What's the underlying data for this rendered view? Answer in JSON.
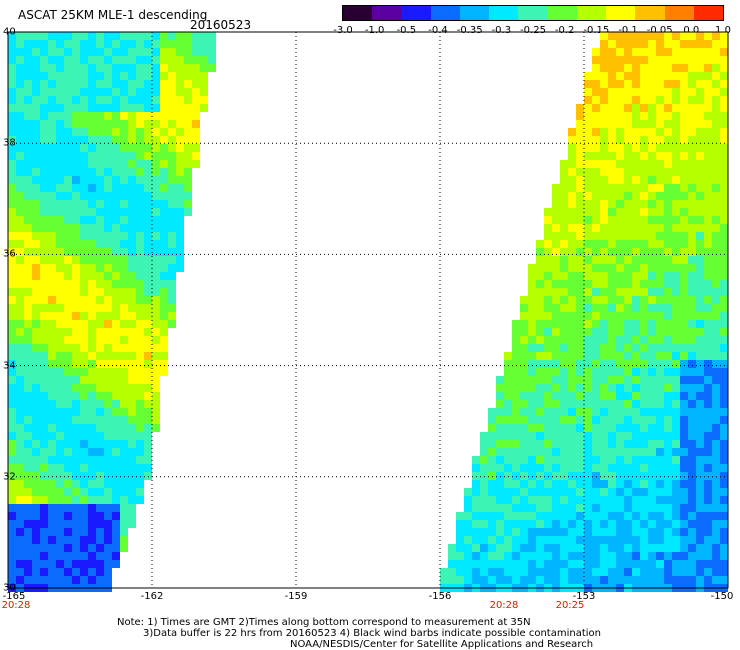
{
  "header": {
    "title": "ASCAT 25KM MLE-1 descending",
    "date": "20160523"
  },
  "colorbar": {
    "ticks": [
      "-3.0",
      "-1.0",
      "-0.5",
      "-0.4",
      "-0.35",
      "-0.3",
      "-0.25",
      "-0.2",
      "-0.15",
      "-0.1",
      "-0.05",
      "0.0",
      "1.0"
    ],
    "colors": [
      "#2a0033",
      "#5a00a0",
      "#1a1aff",
      "#0a6cff",
      "#00b4ff",
      "#00eaff",
      "#3cf5b4",
      "#66ff33",
      "#b4ff00",
      "#ffff00",
      "#ffc000",
      "#ff8000",
      "#ff2a00"
    ]
  },
  "map": {
    "lon_range": [
      -165,
      -150
    ],
    "lat_range": [
      30,
      40
    ],
    "lat_gridlines": [
      32,
      34,
      36,
      38
    ],
    "lon_gridlines": [
      -162,
      -159,
      -156,
      -153
    ],
    "y_labels": [
      "40",
      "38",
      "36",
      "34",
      "32",
      "30"
    ],
    "x_labels": [
      "-165",
      "-162",
      "-159",
      "-156",
      "-153",
      "-150"
    ],
    "time_labels": [
      "20:28",
      "20:28",
      "20:25"
    ]
  },
  "notes": {
    "line1": "Note: 1) Times are GMT 2)Times along bottom correspond to measurement at 35N",
    "line2": "3)Data buffer is 22 hrs from 20160523 4) Black wind barbs indicate possible contamination",
    "line3": "NOAA/NESDIS/Center for Satellite Applications and Research"
  }
}
